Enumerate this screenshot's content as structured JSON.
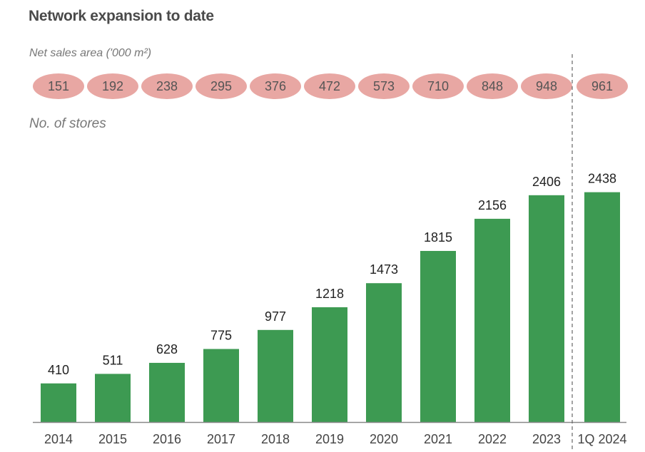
{
  "title": "Network expansion to date",
  "sales_label": "Net sales area ('000 m²)",
  "stores_label": "No. of stores",
  "colors": {
    "bar": "#3d9a52",
    "pill": "#e8a7a3",
    "axis": "#888888",
    "divider": "#666666"
  },
  "chart_data": {
    "type": "bar",
    "categories": [
      "2014",
      "2015",
      "2016",
      "2017",
      "2018",
      "2019",
      "2020",
      "2021",
      "2022",
      "2023",
      "1Q 2024"
    ],
    "series": [
      {
        "name": "No. of stores",
        "values": [
          410,
          511,
          628,
          775,
          977,
          1218,
          1473,
          1815,
          2156,
          2406,
          2438
        ]
      }
    ],
    "net_sales_area": [
      151,
      192,
      238,
      295,
      376,
      472,
      573,
      710,
      848,
      948,
      961
    ],
    "ylim": [
      0,
      2450
    ],
    "grid": false,
    "divider_before_category": "1Q 2024"
  }
}
